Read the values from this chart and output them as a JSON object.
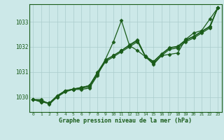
{
  "title": "Graphe pression niveau de la mer (hPa)",
  "bg_color": "#cce8e8",
  "grid_color": "#aacccc",
  "line_color": "#1a5c1a",
  "x_ticks": [
    0,
    1,
    2,
    3,
    4,
    5,
    6,
    7,
    8,
    9,
    10,
    11,
    12,
    13,
    14,
    15,
    16,
    17,
    18,
    19,
    20,
    21,
    22,
    23
  ],
  "y_ticks": [
    1030,
    1031,
    1032,
    1033
  ],
  "ylim": [
    1029.4,
    1033.7
  ],
  "xlim": [
    -0.5,
    23.5
  ],
  "series": [
    [
      1029.9,
      1029.9,
      1029.7,
      1030.0,
      1030.25,
      1030.3,
      1030.3,
      1030.35,
      1030.85,
      1031.5,
      1032.2,
      1033.05,
      1032.05,
      1031.85,
      1031.6,
      1031.3,
      1031.65,
      1031.7,
      1031.75,
      1032.3,
      1032.55,
      1032.65,
      1033.1,
      1033.55
    ],
    [
      1029.9,
      1029.8,
      1029.75,
      1030.0,
      1030.2,
      1030.3,
      1030.35,
      1030.4,
      1030.9,
      1031.4,
      1031.6,
      1031.8,
      1032.0,
      1032.2,
      1031.6,
      1031.35,
      1031.65,
      1031.9,
      1031.95,
      1032.2,
      1032.35,
      1032.55,
      1032.75,
      1033.55
    ],
    [
      1029.9,
      1029.8,
      1029.75,
      1030.05,
      1030.25,
      1030.3,
      1030.38,
      1030.45,
      1030.95,
      1031.45,
      1031.65,
      1031.85,
      1032.05,
      1032.25,
      1031.6,
      1031.4,
      1031.7,
      1031.95,
      1032.0,
      1032.25,
      1032.4,
      1032.6,
      1032.8,
      1033.55
    ],
    [
      1029.9,
      1029.85,
      1029.75,
      1030.05,
      1030.25,
      1030.32,
      1030.38,
      1030.45,
      1030.98,
      1031.48,
      1031.65,
      1031.85,
      1032.08,
      1032.28,
      1031.62,
      1031.42,
      1031.72,
      1031.97,
      1032.02,
      1032.28,
      1032.42,
      1032.62,
      1032.82,
      1033.55
    ]
  ],
  "marker": "D",
  "markersize": 2.5,
  "linewidth": 0.9,
  "xlabel_fontsize": 6.0,
  "xtick_fontsize": 4.5,
  "ytick_fontsize": 5.5
}
